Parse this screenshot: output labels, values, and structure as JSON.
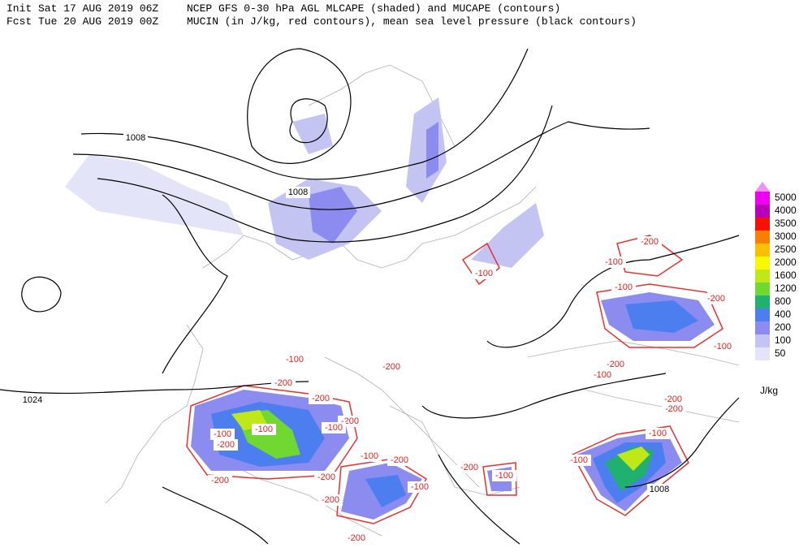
{
  "header": {
    "init": "Init  Sat 17 AUG 2019 06Z",
    "fcst": "Fcst Tue 20 AUG 2019 00Z",
    "title_line1": "NCEP GFS 0-30 hPa AGL MLCAPE (shaded) and MUCAPE (contours)",
    "title_line2": "MUCIN (in J/kg, red contours), mean sea level pressure (black contours)"
  },
  "legend": {
    "unit": "J/kg",
    "levels": [
      {
        "value": 50,
        "color": "#e4e4f8"
      },
      {
        "value": 100,
        "color": "#c4c4f2"
      },
      {
        "value": 200,
        "color": "#8c8cf0"
      },
      {
        "value": 400,
        "color": "#4c7ef0"
      },
      {
        "value": 800,
        "color": "#20b070"
      },
      {
        "value": 1200,
        "color": "#70d830"
      },
      {
        "value": 1600,
        "color": "#c0e818"
      },
      {
        "value": 2000,
        "color": "#f8f800"
      },
      {
        "value": 2500,
        "color": "#f8c000"
      },
      {
        "value": 3000,
        "color": "#f88000"
      },
      {
        "value": 3500,
        "color": "#f81000"
      },
      {
        "value": 4000,
        "color": "#b800b8"
      },
      {
        "value": 5000,
        "color": "#f000f0"
      }
    ],
    "overflow_color": "#f090f0"
  },
  "pressure_labels": [
    1008,
    1008,
    1024,
    1008
  ],
  "cin_labels": [
    -200,
    -100,
    -100,
    -200,
    -100,
    -100,
    -200,
    -200,
    -100,
    -200,
    -200,
    -200,
    -200,
    -100,
    -200,
    -100,
    -100,
    -200,
    -100,
    -100,
    -200,
    -100,
    -200,
    -100,
    -200,
    -200,
    -200,
    -200,
    -100,
    -100
  ]
}
